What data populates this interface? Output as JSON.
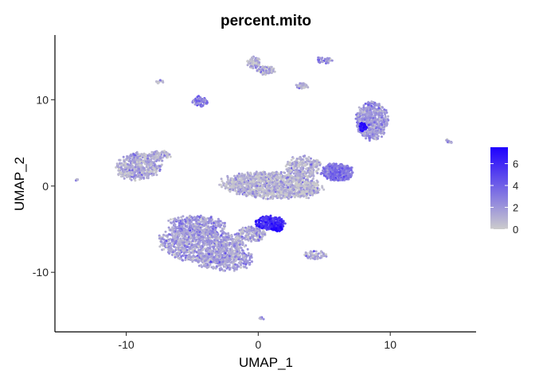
{
  "chart_data": {
    "type": "scatter",
    "title": "percent.mito",
    "xlabel": "UMAP_1",
    "ylabel": "UMAP_2",
    "xlim": [
      -15.4,
      16.5
    ],
    "ylim": [
      -16.9,
      17.5
    ],
    "x_ticks": [
      {
        "value": -10,
        "label": "-10"
      },
      {
        "value": 0,
        "label": "0"
      },
      {
        "value": 10,
        "label": "10"
      }
    ],
    "y_ticks": [
      {
        "value": -10,
        "label": "-10"
      },
      {
        "value": 0,
        "label": "0"
      },
      {
        "value": 10,
        "label": "10"
      }
    ],
    "grid": false,
    "color_scale": {
      "low_color": "#cccccc",
      "high_color": "#1e00ff",
      "min": 0,
      "max": 7.5,
      "ticks": [
        {
          "value": 0,
          "label": "0"
        },
        {
          "value": 2,
          "label": "2"
        },
        {
          "value": 4,
          "label": "4"
        },
        {
          "value": 6,
          "label": "6"
        }
      ],
      "legend_position": "right"
    },
    "clusters": [
      {
        "cx": -9.0,
        "cy": 2.3,
        "rx": 1.8,
        "ry": 1.5,
        "angle": 25,
        "n": 520,
        "mito": 1.0
      },
      {
        "cx": -7.4,
        "cy": 3.6,
        "rx": 0.8,
        "ry": 0.5,
        "angle": 0,
        "n": 80,
        "mito": 1.0
      },
      {
        "cx": -4.7,
        "cy": -4.6,
        "rx": 2.2,
        "ry": 1.2,
        "angle": 0,
        "n": 380,
        "mito": 1.8
      },
      {
        "cx": -4.2,
        "cy": -6.9,
        "rx": 3.3,
        "ry": 2.0,
        "angle": -12,
        "n": 1050,
        "mito": 1.5
      },
      {
        "cx": -2.5,
        "cy": -8.6,
        "rx": 2.1,
        "ry": 1.3,
        "angle": 0,
        "n": 320,
        "mito": 1.5
      },
      {
        "cx": -0.6,
        "cy": -5.6,
        "rx": 1.2,
        "ry": 0.9,
        "angle": 0,
        "n": 160,
        "mito": 1.2
      },
      {
        "cx": 0.9,
        "cy": -4.3,
        "rx": 1.1,
        "ry": 0.8,
        "angle": 0,
        "n": 280,
        "mito": 5.8
      },
      {
        "cx": 1.4,
        "cy": -4.9,
        "rx": 0.4,
        "ry": 0.35,
        "angle": 0,
        "n": 60,
        "mito": 7.2
      },
      {
        "cx": 1.0,
        "cy": 0.1,
        "rx": 3.7,
        "ry": 1.5,
        "angle": -4,
        "n": 1300,
        "mito": 0.7
      },
      {
        "cx": 3.4,
        "cy": 2.2,
        "rx": 1.3,
        "ry": 1.3,
        "angle": 0,
        "n": 280,
        "mito": 0.6
      },
      {
        "cx": 3.8,
        "cy": -0.6,
        "rx": 0.8,
        "ry": 0.8,
        "angle": 0,
        "n": 90,
        "mito": 0.6
      },
      {
        "cx": 6.0,
        "cy": 1.6,
        "rx": 1.2,
        "ry": 1.0,
        "angle": 0,
        "n": 460,
        "mito": 3.2
      },
      {
        "cx": 8.6,
        "cy": 7.6,
        "rx": 1.2,
        "ry": 2.2,
        "angle": 0,
        "n": 520,
        "mito": 1.8
      },
      {
        "cx": 7.9,
        "cy": 6.8,
        "rx": 0.3,
        "ry": 0.5,
        "angle": 0,
        "n": 50,
        "mito": 7.0
      },
      {
        "cx": -4.4,
        "cy": 9.8,
        "rx": 0.6,
        "ry": 0.6,
        "angle": 0,
        "n": 80,
        "mito": 2.5
      },
      {
        "cx": -7.5,
        "cy": 12.1,
        "rx": 0.3,
        "ry": 0.2,
        "angle": 0,
        "n": 14,
        "mito": 1.0
      },
      {
        "cx": -0.3,
        "cy": 14.3,
        "rx": 0.5,
        "ry": 0.7,
        "angle": 0,
        "n": 80,
        "mito": 0.7
      },
      {
        "cx": 0.6,
        "cy": 13.4,
        "rx": 0.7,
        "ry": 0.5,
        "angle": 0,
        "n": 70,
        "mito": 1.0
      },
      {
        "cx": 3.3,
        "cy": 11.6,
        "rx": 0.5,
        "ry": 0.3,
        "angle": 0,
        "n": 40,
        "mito": 1.2
      },
      {
        "cx": 5.0,
        "cy": 14.6,
        "rx": 0.6,
        "ry": 0.4,
        "angle": 0,
        "n": 40,
        "mito": 2.0
      },
      {
        "cx": 4.3,
        "cy": -8.0,
        "rx": 0.9,
        "ry": 0.5,
        "angle": 0,
        "n": 60,
        "mito": 1.2
      },
      {
        "cx": 14.4,
        "cy": 5.2,
        "rx": 0.4,
        "ry": 0.15,
        "angle": -30,
        "n": 14,
        "mito": 1.0
      },
      {
        "cx": -13.8,
        "cy": 0.7,
        "rx": 0.15,
        "ry": 0.15,
        "angle": 0,
        "n": 5,
        "mito": 0.8
      },
      {
        "cx": 0.3,
        "cy": -15.3,
        "rx": 0.25,
        "ry": 0.15,
        "angle": 0,
        "n": 8,
        "mito": 0.8
      }
    ]
  }
}
